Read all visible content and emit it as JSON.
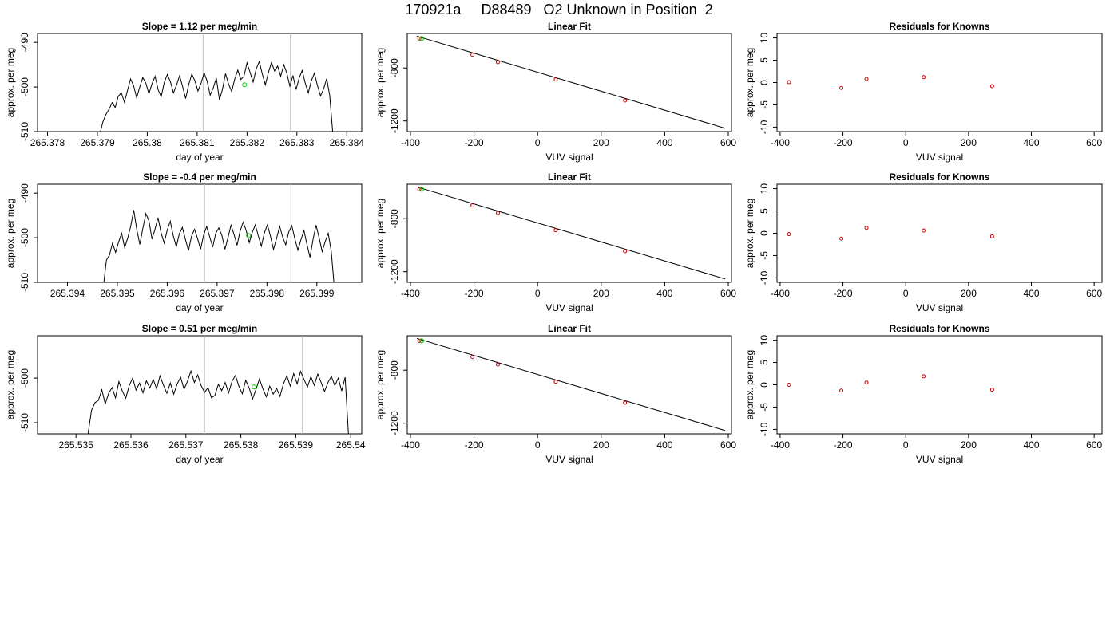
{
  "page": {
    "title": "170921a     D88489   O2 Unknown in Position  2"
  },
  "chart_data": [
    {
      "type": "line",
      "panel": "trace",
      "title": "Slope =  1.12  per meg/min",
      "xlabel": "day of year",
      "ylabel": "approx. per meg",
      "xlim": [
        265.3778,
        265.3843
      ],
      "ylim": [
        -510,
        -488
      ],
      "xticks": [
        265.378,
        265.379,
        265.38,
        265.381,
        265.382,
        265.383,
        265.384
      ],
      "yticks": [
        -510,
        -500,
        -490
      ],
      "vlines": [
        265.38112,
        265.38287
      ],
      "line_start": 265.37905,
      "line_end": 265.38372,
      "trace": [
        -510.5,
        -507.8,
        -506.1,
        -505.0,
        -503.5,
        -504.6,
        -502.1,
        -501.3,
        -503.4,
        -500.8,
        -498.2,
        -499.7,
        -502.4,
        -500.0,
        -497.9,
        -499.1,
        -501.5,
        -499.3,
        -497.6,
        -500.6,
        -502.2,
        -499.0,
        -497.2,
        -498.8,
        -501.3,
        -499.6,
        -497.5,
        -499.9,
        -502.6,
        -499.4,
        -497.1,
        -498.6,
        -500.9,
        -499.2,
        -496.8,
        -498.7,
        -501.8,
        -500.2,
        -498.0,
        -502.9,
        -500.5,
        -497.0,
        -499.4,
        -501.0,
        -498.2,
        -496.2,
        -498.3,
        -497.6,
        -494.6,
        -496.7,
        -498.9,
        -496.0,
        -494.3,
        -497.1,
        -499.5,
        -496.7,
        -494.5,
        -496.4,
        -495.3,
        -497.6,
        -495.0,
        -496.9,
        -499.8,
        -497.4,
        -500.6,
        -498.0,
        -496.3,
        -499.1,
        -501.3,
        -498.6,
        -496.9,
        -499.7,
        -502.0,
        -500.4,
        -498.1,
        -501.9,
        -510.5
      ],
      "green_points": [
        {
          "x": 265.38195,
          "y": -499.5
        }
      ]
    },
    {
      "type": "scatter",
      "panel": "fit",
      "title": "Linear Fit",
      "xlabel": "VUV signal",
      "ylabel": "approx. per meg",
      "xlim": [
        -410,
        610
      ],
      "ylim": [
        -1280,
        -540
      ],
      "xticks": [
        -400,
        -200,
        0,
        200,
        400,
        600
      ],
      "yticks": [
        -1200,
        -800
      ],
      "line": {
        "x": [
          -380,
          590
        ],
        "y": [
          -560,
          -1255
        ]
      },
      "points_x": [
        -372,
        -205,
        -125,
        57,
        275
      ],
      "points_y": [
        -578,
        -700,
        -757,
        -887,
        -1045
      ],
      "green_points": [
        {
          "x": -365,
          "y": -578
        }
      ]
    },
    {
      "type": "scatter",
      "panel": "residuals",
      "title": "Residuals for Knowns",
      "xlabel": "VUV signal",
      "ylabel": "approx. per meg",
      "xlim": [
        -410,
        625
      ],
      "ylim": [
        -11,
        11
      ],
      "xticks": [
        -400,
        -200,
        0,
        200,
        400,
        600
      ],
      "yticks": [
        -10,
        -5,
        0,
        5,
        10
      ],
      "points_x": [
        -372,
        -205,
        -125,
        57,
        275
      ],
      "points_y": [
        0.1,
        -1.2,
        0.8,
        1.2,
        -0.8
      ]
    },
    {
      "type": "line",
      "panel": "trace",
      "title": "Slope =  -0.4  per meg/min",
      "xlabel": "day of year",
      "ylabel": "approx. per meg",
      "xlim": [
        265.3934,
        265.3999
      ],
      "ylim": [
        -510,
        -488
      ],
      "xticks": [
        265.394,
        265.395,
        265.396,
        265.397,
        265.398,
        265.399
      ],
      "yticks": [
        -510,
        -500,
        -490
      ],
      "vlines": [
        265.39675,
        265.39848
      ],
      "line_start": 265.39472,
      "line_end": 265.39935,
      "trace": [
        -511.0,
        -505.0,
        -503.9,
        -501.2,
        -503.3,
        -501.0,
        -499.0,
        -502.2,
        -500.1,
        -497.4,
        -493.8,
        -498.2,
        -501.5,
        -497.9,
        -494.6,
        -496.2,
        -500.3,
        -498.1,
        -495.5,
        -498.9,
        -501.2,
        -498.3,
        -496.3,
        -499.6,
        -502.0,
        -499.1,
        -497.7,
        -500.4,
        -502.9,
        -499.7,
        -498.1,
        -500.2,
        -502.6,
        -499.4,
        -497.5,
        -499.8,
        -502.1,
        -499.0,
        -497.8,
        -499.5,
        -502.6,
        -500.0,
        -497.2,
        -499.3,
        -501.7,
        -498.5,
        -496.5,
        -498.4,
        -501.1,
        -498.8,
        -497.1,
        -499.6,
        -501.9,
        -498.9,
        -497.1,
        -499.7,
        -502.6,
        -500.2,
        -497.4,
        -499.9,
        -501.6,
        -498.7,
        -497.3,
        -500.2,
        -502.8,
        -500.5,
        -498.4,
        -501.5,
        -504.4,
        -500.4,
        -497.2,
        -500.0,
        -503.1,
        -500.9,
        -499.0,
        -503.0,
        -511.0
      ],
      "green_points": [
        {
          "x": 265.39763,
          "y": -499.5
        }
      ]
    },
    {
      "type": "scatter",
      "panel": "fit",
      "title": "Linear Fit",
      "xlabel": "VUV signal",
      "ylabel": "approx. per meg",
      "xlim": [
        -410,
        610
      ],
      "ylim": [
        -1280,
        -540
      ],
      "xticks": [
        -400,
        -200,
        0,
        200,
        400,
        600
      ],
      "yticks": [
        -1200,
        -800
      ],
      "line": {
        "x": [
          -380,
          590
        ],
        "y": [
          -560,
          -1255
        ]
      },
      "points_x": [
        -372,
        -205,
        -125,
        57,
        275
      ],
      "points_y": [
        -578,
        -700,
        -757,
        -887,
        -1045
      ],
      "green_points": [
        {
          "x": -365,
          "y": -578
        }
      ]
    },
    {
      "type": "scatter",
      "panel": "residuals",
      "title": "Residuals for Knowns",
      "xlabel": "VUV signal",
      "ylabel": "approx. per meg",
      "xlim": [
        -410,
        625
      ],
      "ylim": [
        -11,
        11
      ],
      "xticks": [
        -400,
        -200,
        0,
        200,
        400,
        600
      ],
      "yticks": [
        -10,
        -5,
        0,
        5,
        10
      ],
      "points_x": [
        -372,
        -205,
        -125,
        57,
        275
      ],
      "points_y": [
        -0.2,
        -1.2,
        1.2,
        0.6,
        -0.7
      ]
    },
    {
      "type": "line",
      "panel": "trace",
      "title": "Slope =  0.51  per meg/min",
      "xlabel": "day of year",
      "ylabel": "approx. per meg",
      "xlim": [
        265.5343,
        265.5402
      ],
      "ylim": [
        -512.5,
        -490.5
      ],
      "xticks": [
        265.535,
        265.536,
        265.537,
        265.538,
        265.539,
        265.54
      ],
      "yticks": [
        -510,
        -500
      ],
      "vlines": [
        265.53734,
        265.53912
      ],
      "line_start": 265.53522,
      "line_end": 265.53996,
      "trace": [
        -512.5,
        -507.2,
        -505.5,
        -505.0,
        -502.6,
        -505.8,
        -503.4,
        -502.1,
        -504.4,
        -500.8,
        -502.9,
        -504.5,
        -501.7,
        -500.0,
        -502.7,
        -501.1,
        -503.3,
        -500.6,
        -502.2,
        -500.3,
        -502.4,
        -499.5,
        -501.6,
        -503.4,
        -501.1,
        -503.6,
        -501.3,
        -499.8,
        -502.5,
        -500.7,
        -498.4,
        -501.0,
        -499.3,
        -501.7,
        -503.2,
        -502.1,
        -504.4,
        -503.9,
        -501.4,
        -502.8,
        -501.0,
        -503.3,
        -500.7,
        -499.4,
        -501.8,
        -503.5,
        -500.5,
        -502.2,
        -504.7,
        -502.5,
        -500.2,
        -502.4,
        -504.2,
        -501.8,
        -503.6,
        -502.3,
        -504.1,
        -501.3,
        -499.5,
        -501.8,
        -499.0,
        -501.3,
        -498.5,
        -500.3,
        -502.0,
        -499.7,
        -501.6,
        -499.1,
        -501.0,
        -503.0,
        -501.0,
        -499.6,
        -501.7,
        -500.0,
        -502.9,
        -499.8,
        -513.0
      ],
      "green_points": [
        {
          "x": 265.53824,
          "y": -502.0
        }
      ]
    },
    {
      "type": "scatter",
      "panel": "fit",
      "title": "Linear Fit",
      "xlabel": "VUV signal",
      "ylabel": "approx. per meg",
      "xlim": [
        -410,
        610
      ],
      "ylim": [
        -1280,
        -540
      ],
      "xticks": [
        -400,
        -200,
        0,
        200,
        400,
        600
      ],
      "yticks": [
        -1200,
        -800
      ],
      "line": {
        "x": [
          -380,
          590
        ],
        "y": [
          -560,
          -1255
        ]
      },
      "points_x": [
        -372,
        -205,
        -125,
        57,
        275
      ],
      "points_y": [
        -578,
        -700,
        -757,
        -887,
        -1045
      ],
      "green_points": [
        {
          "x": -365,
          "y": -578
        }
      ]
    },
    {
      "type": "scatter",
      "panel": "residuals",
      "title": "Residuals for Knowns",
      "xlabel": "VUV signal",
      "ylabel": "approx. per meg",
      "xlim": [
        -410,
        625
      ],
      "ylim": [
        -11,
        11
      ],
      "xticks": [
        -400,
        -200,
        0,
        200,
        400,
        600
      ],
      "yticks": [
        -10,
        -5,
        0,
        5,
        10
      ],
      "points_x": [
        -372,
        -205,
        -125,
        57,
        275
      ],
      "points_y": [
        0.0,
        -1.3,
        0.5,
        1.9,
        -1.1
      ]
    }
  ]
}
